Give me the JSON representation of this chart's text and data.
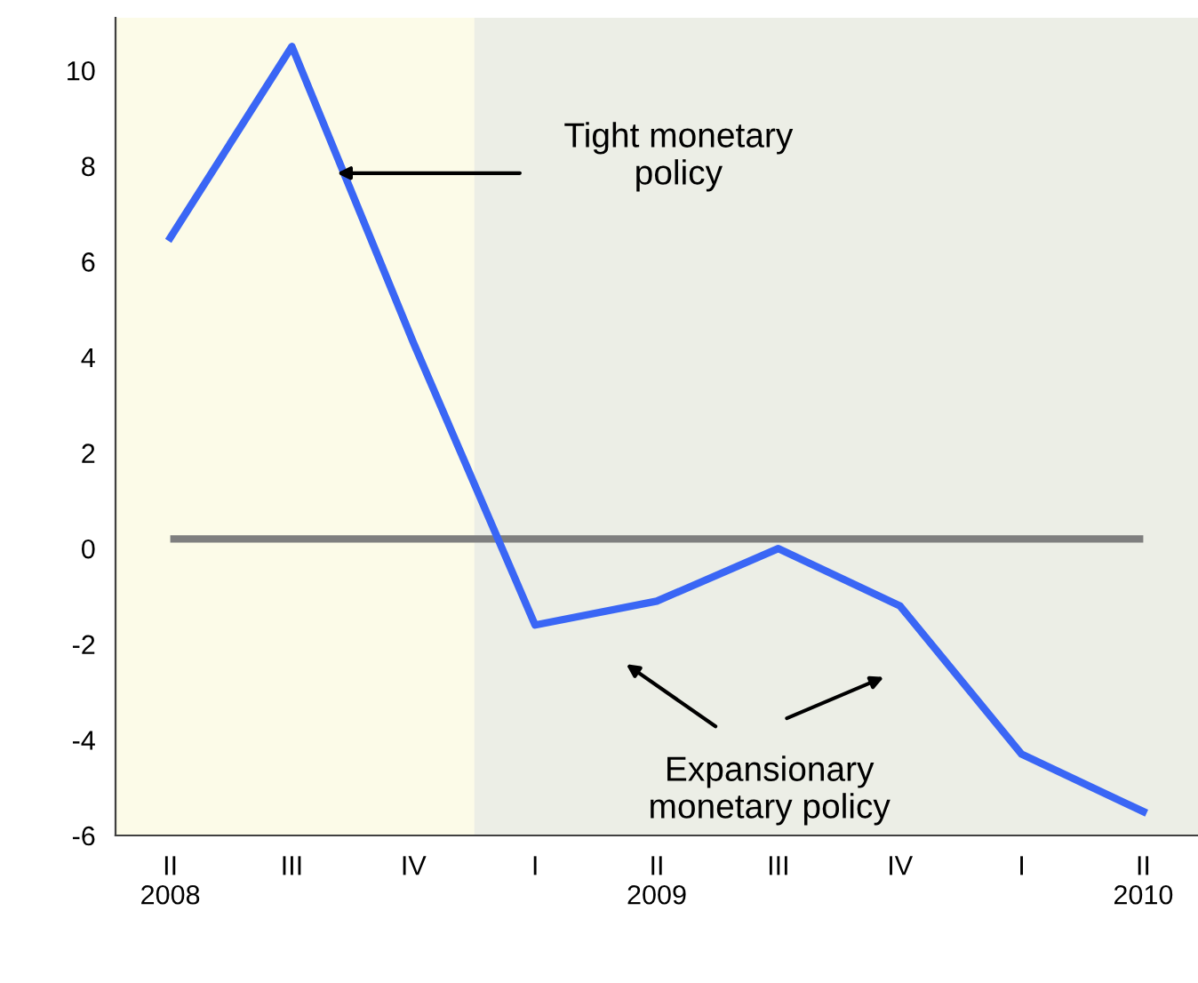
{
  "chart_data": {
    "type": "line",
    "categories": [
      "II\n2008",
      "III",
      "IV",
      "I",
      "II\n2009",
      "III",
      "IV",
      "I",
      "II\n2010"
    ],
    "series": [
      {
        "color": "#3a66f5",
        "values": [
          6.5,
          10.5,
          4.3,
          -1.6,
          -1.1,
          0.0,
          -1.2,
          -4.3,
          -5.5
        ]
      }
    ],
    "ylim": [
      -6,
      11.1
    ],
    "yticks": [
      -6,
      -4,
      -2,
      0,
      2,
      4,
      6,
      8,
      10
    ],
    "grid": false,
    "legend": false,
    "marker": "none",
    "line_style": "solid",
    "ref_lines": [
      {
        "axis": "y",
        "value": 0.2,
        "color": "#7f7f7f"
      }
    ],
    "annotations": [
      "Tight monetary\npolicy",
      "Expansionary\nmonetary policy"
    ]
  }
}
